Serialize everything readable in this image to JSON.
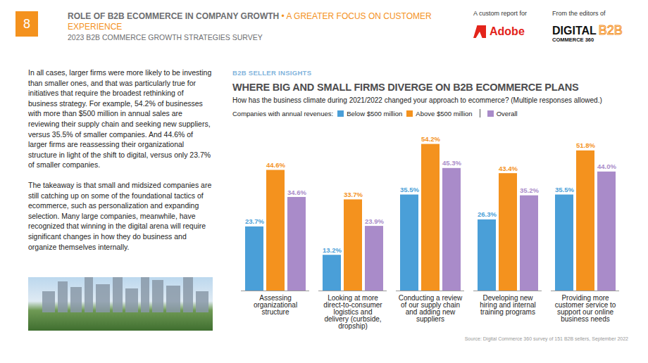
{
  "header": {
    "page_number": "8",
    "title": "ROLE OF B2B ECOMMERCE IN COMPANY GROWTH",
    "title_accent": "• A GREATER FOCUS ON CUSTOMER EXPERIENCE",
    "subtitle": "2023 B2B COMMERCE GROWTH STRATEGIES SURVEY",
    "custom_report_label": "A custom report for",
    "sponsor": "Adobe",
    "editors_label": "From the editors of",
    "publisher_line1": "DIGITAL",
    "publisher_line2": "COMMERCE 360",
    "publisher_badge": "B2B"
  },
  "body": {
    "paragraphs": [
      "In all cases, larger firms were more likely to be investing than smaller ones, and that was particularly true for initiatives that require the broadest rethinking of business strategy. For example, 54.2% of businesses with more than $500 million in annual sales are reviewing their supply chain and seeking new suppliers, versus 35.5% of smaller companies. And 44.6% of larger firms are reassessing their organizational structure in light of the shift to digital, versus only 23.7% of smaller companies.",
      "The takeaway is that small and midsized companies are still catching up on some of the foundational tactics of ecommerce, such as personalization and expanding selection. Many large companies, meanwhile, have recognized that winning in the digital arena will require significant changes in how they do business and organize themselves internally."
    ]
  },
  "chart_data": {
    "type": "bar",
    "section_label": "B2B SELLER INSIGHTS",
    "title": "WHERE BIG AND SMALL FIRMS DIVERGE ON B2B ECOMMERCE PLANS",
    "subtitle": "How has the business climate during 2021/2022 changed your approach to ecommerce? (Multiple responses allowed.)",
    "legend_title": "Companies with annual revenues:",
    "source": "Source: Digital Commerce 360 survey of 151 B2B sellers, September 2022",
    "categories": [
      "Assessing organizational structure",
      "Looking at more direct-to-consumer logistics and delivery (curbside, dropship)",
      "Conducting a review of our supply chain and adding new suppliers",
      "Developing new hiring and internal training programs",
      "Providing more customer service to support our online business needs"
    ],
    "series": [
      {
        "name": "Below $500 million",
        "color": "#4a9fd8",
        "values": [
          23.7,
          13.2,
          35.5,
          26.3,
          35.5
        ],
        "value_labels": [
          "23.7%",
          "13.2%",
          "35.5%",
          "26.3%",
          "35.5%"
        ]
      },
      {
        "name": "Above $500 million",
        "color": "#f4921e",
        "values": [
          44.6,
          33.7,
          54.2,
          43.4,
          51.8
        ],
        "value_labels": [
          "44.6%",
          "33.7%",
          "54.2%",
          "43.4%",
          "51.8%"
        ]
      },
      {
        "name": "Overall",
        "color": "#a98bc9",
        "values": [
          34.6,
          23.9,
          45.3,
          35.2,
          44.0
        ],
        "value_labels": [
          "34.6%",
          "23.9%",
          "45.3%",
          "35.2%",
          "44.0%"
        ]
      }
    ],
    "ylim": [
      0,
      58
    ],
    "yticks": [],
    "grid": false,
    "legend": "top",
    "data_labels": true,
    "tick_labels": "x"
  }
}
